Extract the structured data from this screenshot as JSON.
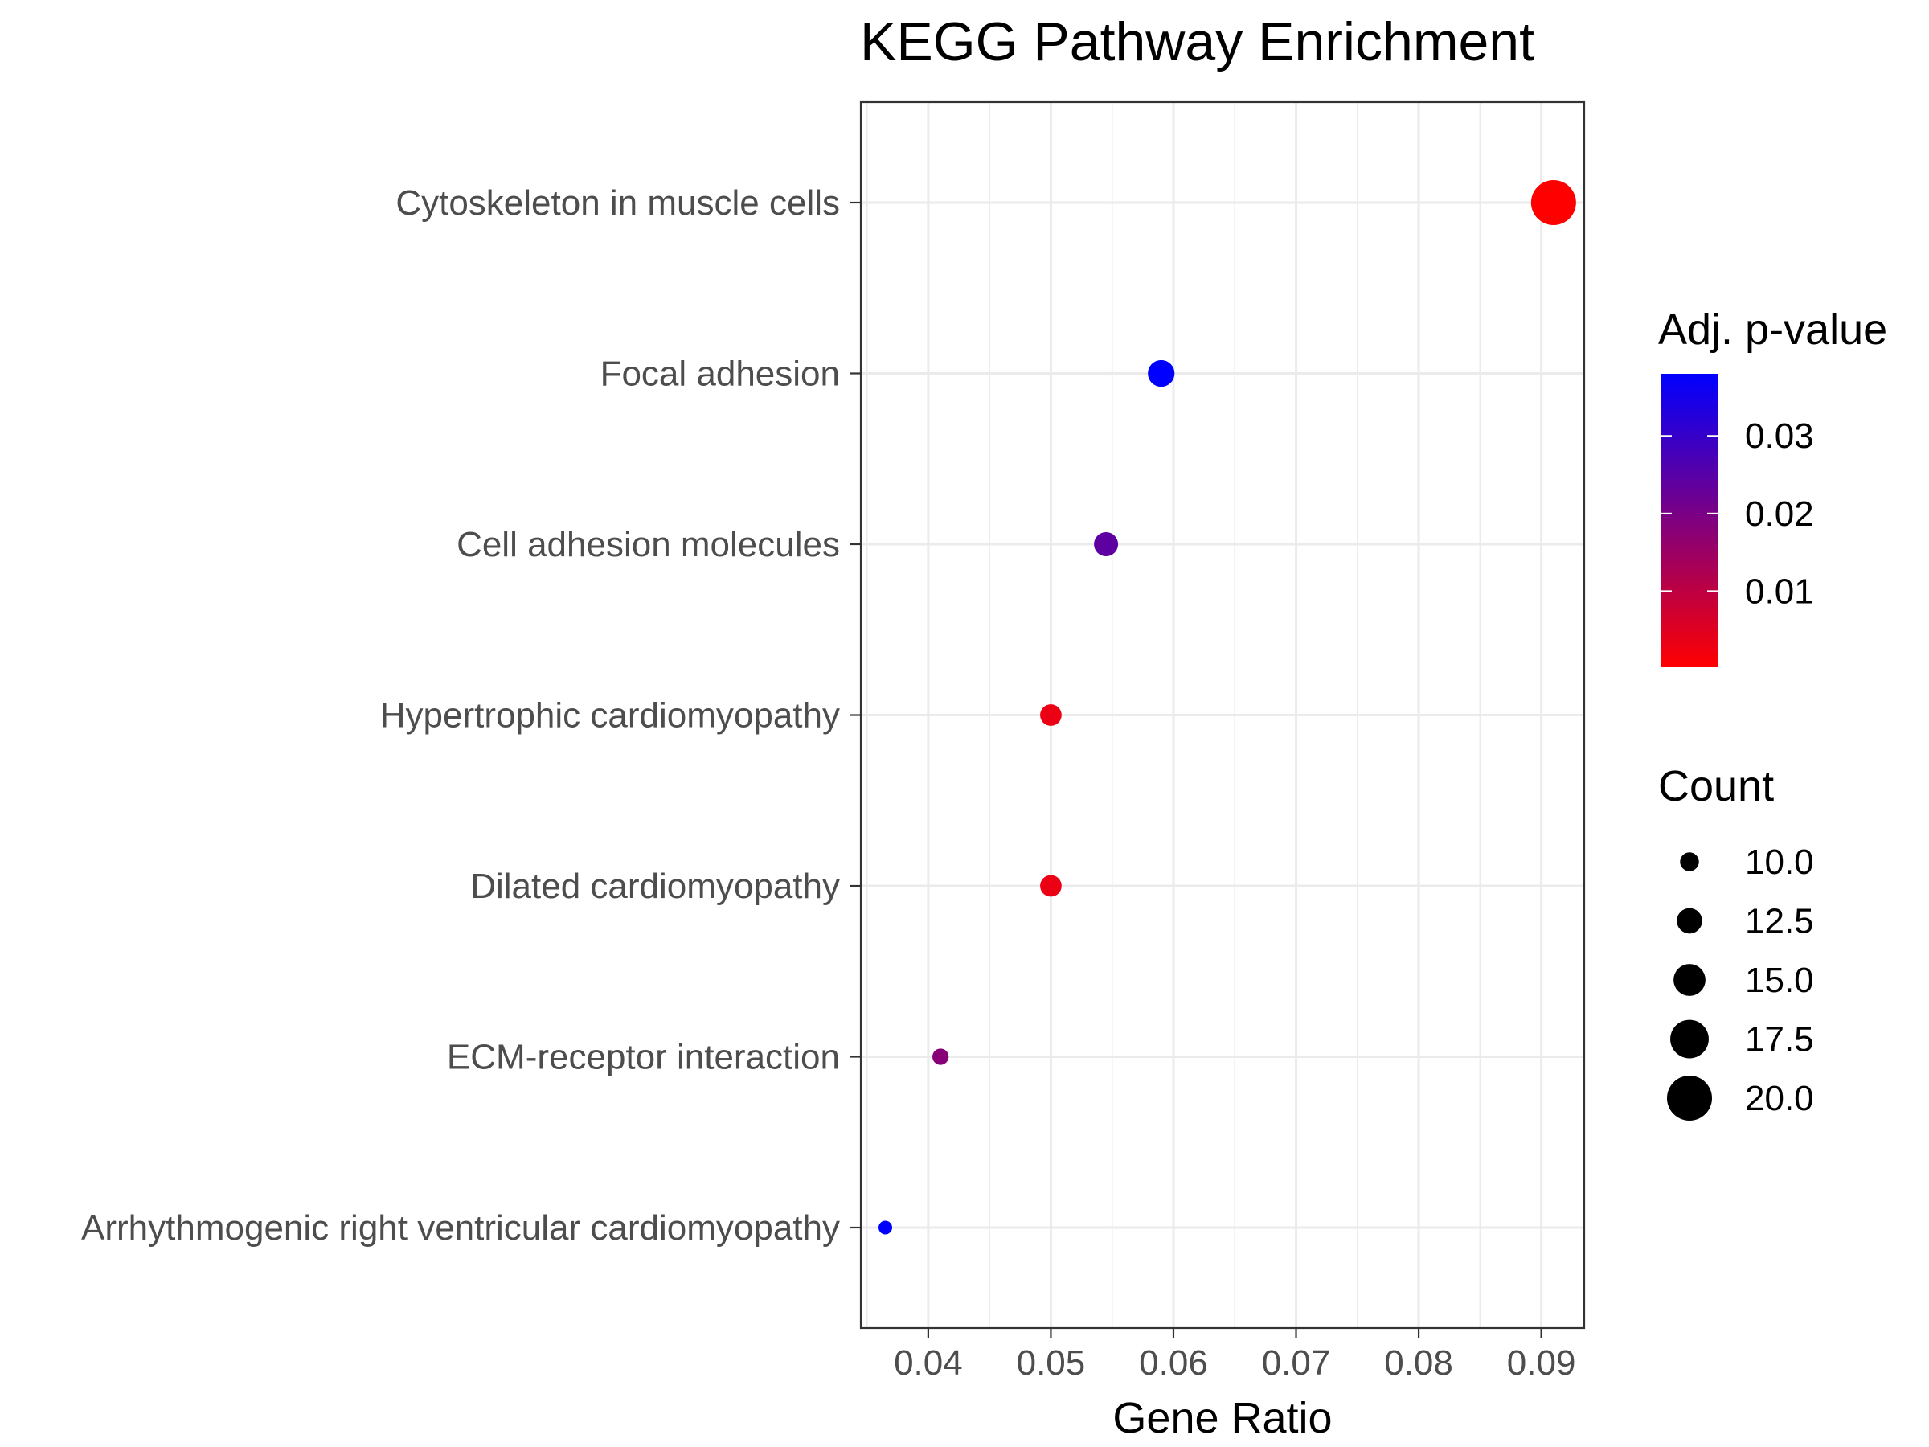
{
  "chart_data": {
    "type": "scatter",
    "title": "KEGG Pathway Enrichment",
    "xlabel": "Gene Ratio",
    "ylabel": "",
    "xlim": [
      0.0345,
      0.0935
    ],
    "x_ticks": [
      0.04,
      0.05,
      0.06,
      0.07,
      0.08,
      0.09
    ],
    "x_tick_labels": [
      "0.04",
      "0.05",
      "0.06",
      "0.07",
      "0.08",
      "0.09"
    ],
    "categories": [
      "Cytoskeleton in muscle cells",
      "Focal adhesion",
      "Cell adhesion molecules",
      "Hypertrophic cardiomyopathy",
      "Dilated cardiomyopathy",
      "ECM-receptor interaction",
      "Arrhythmogenic right ventricular cardiomyopathy"
    ],
    "points": [
      {
        "category": "Cytoskeleton in muscle cells",
        "gene_ratio": 0.091,
        "count": 20,
        "p_adjust": 0.0002
      },
      {
        "category": "Focal adhesion",
        "gene_ratio": 0.059,
        "count": 13,
        "p_adjust": 0.038
      },
      {
        "category": "Cell adhesion molecules",
        "gene_ratio": 0.0545,
        "count": 12,
        "p_adjust": 0.024
      },
      {
        "category": "Hypertrophic cardiomyopathy",
        "gene_ratio": 0.05,
        "count": 11,
        "p_adjust": 0.003
      },
      {
        "category": "Dilated cardiomyopathy",
        "gene_ratio": 0.05,
        "count": 11,
        "p_adjust": 0.003
      },
      {
        "category": "ECM-receptor interaction",
        "gene_ratio": 0.041,
        "count": 9,
        "p_adjust": 0.018
      },
      {
        "category": "Arrhythmogenic right ventricular cardiomyopathy",
        "gene_ratio": 0.0365,
        "count": 8,
        "p_adjust": 0.038
      }
    ],
    "color_legend": {
      "title": "Adj. p-value",
      "min": 0.0002,
      "max": 0.038,
      "low_color": "#ff0000",
      "high_color": "#0000ff",
      "ticks": [
        0.01,
        0.02,
        0.03
      ],
      "tick_labels": [
        "0.01",
        "0.02",
        "0.03"
      ]
    },
    "size_legend": {
      "title": "Count",
      "values": [
        10,
        12.5,
        15,
        17.5,
        20
      ],
      "labels": [
        "10.0",
        "12.5",
        "15.0",
        "17.5",
        "20.0"
      ]
    },
    "grid": true,
    "legend_position": "right"
  }
}
